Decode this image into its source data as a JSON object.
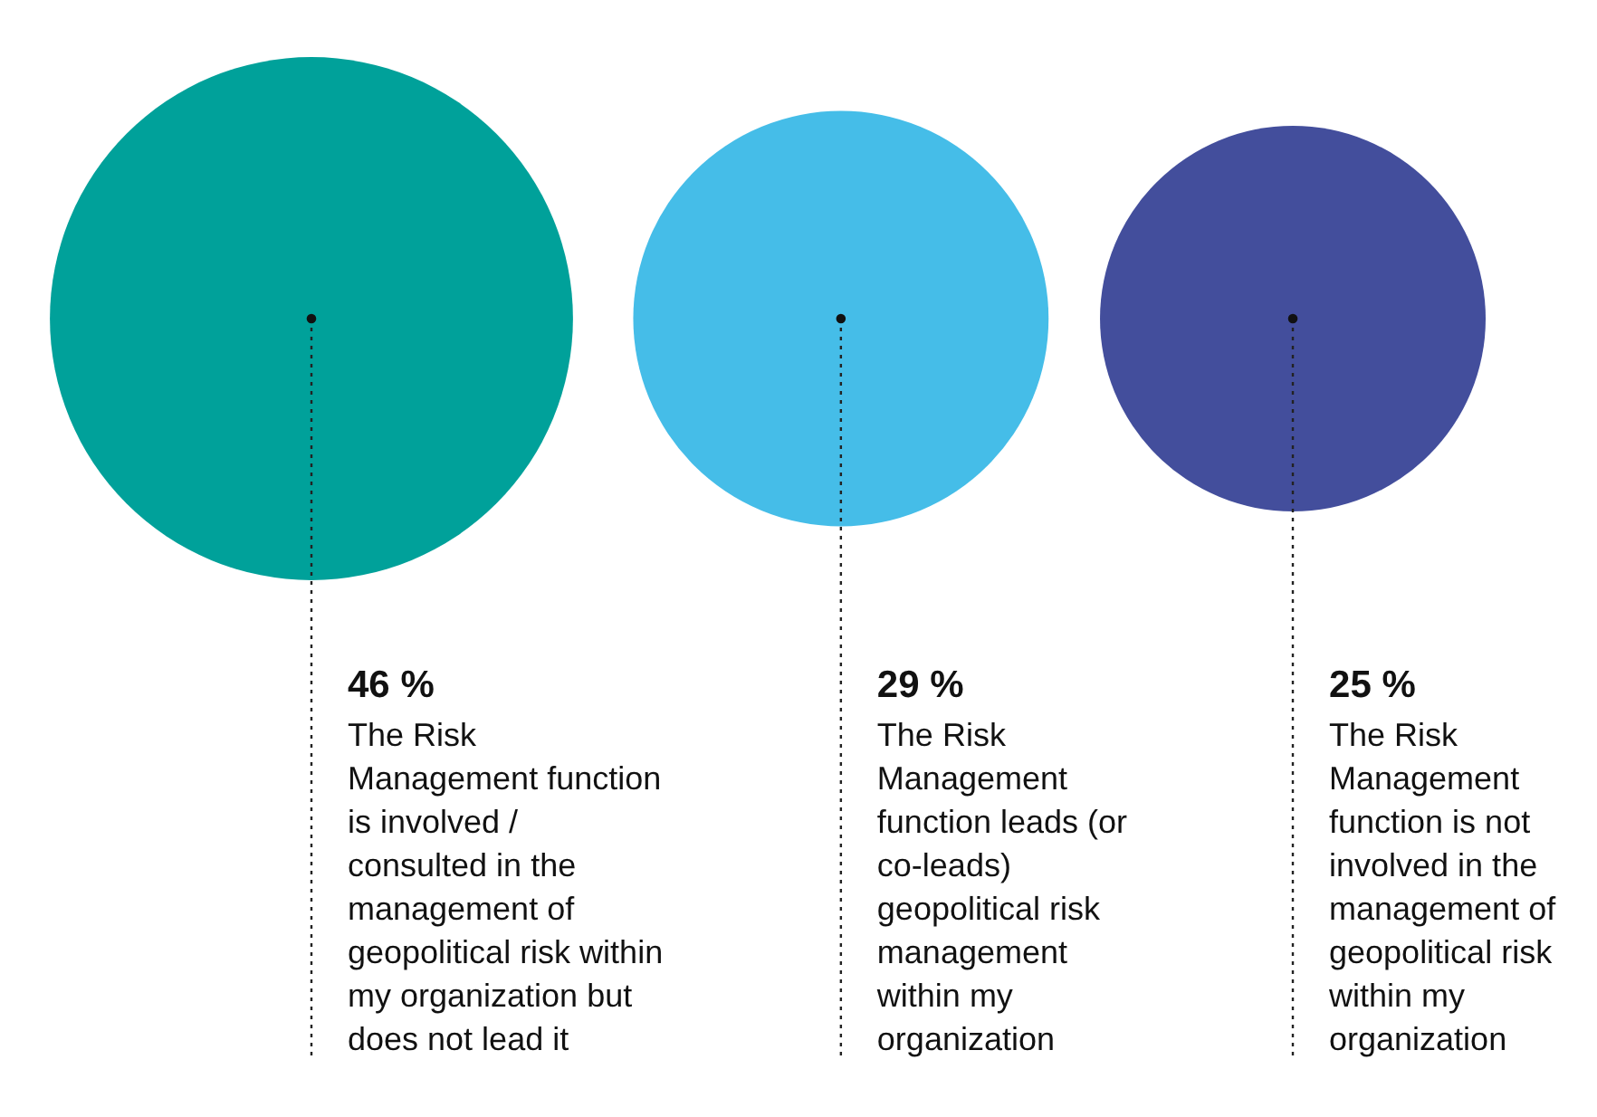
{
  "chart_data": {
    "type": "other",
    "categories": [
      "The Risk Management function is involved / consulted in the management of geopolitical risk within my organization but does not lead it",
      "The Risk Management function leads (or co-leads) geopolitical risk management within my organization",
      "The Risk Management function is not involved in the management of geopolitical risk within my organization"
    ],
    "values": [
      46,
      29,
      25
    ],
    "value_labels": [
      "46 %",
      "29 %",
      "25 %"
    ],
    "colors": [
      "#00a19a",
      "#45bde8",
      "#434e9c"
    ]
  }
}
